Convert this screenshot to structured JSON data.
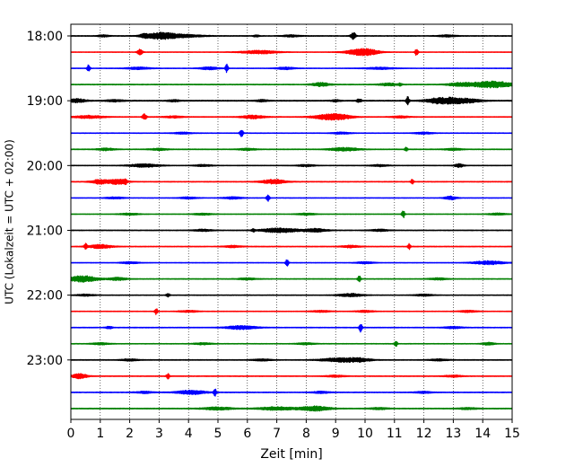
{
  "chart_data": {
    "type": "line",
    "title": "",
    "xlabel": "Zeit  [min]",
    "ylabel": "UTC (Lokalzeit = UTC + 02:00)",
    "xlim": [
      0,
      15
    ],
    "x_ticks": [
      "0",
      "1",
      "2",
      "3",
      "4",
      "5",
      "6",
      "7",
      "8",
      "9",
      "10",
      "11",
      "12",
      "13",
      "14",
      "15"
    ],
    "y_tick_labels": [
      "18:00",
      "19:00",
      "20:00",
      "21:00",
      "22:00",
      "23:00"
    ],
    "grid_x": "dotted",
    "colors": [
      "#000000",
      "#ff0000",
      "#0000ff",
      "#008000"
    ],
    "traces": [
      {
        "start": "18:00",
        "color": "#000000",
        "noise": 0.6,
        "events": [
          [
            1.1,
            0.2,
            1.0
          ],
          [
            2.5,
            0.15,
            1.5
          ],
          [
            3.0,
            0.5,
            2.5
          ],
          [
            3.6,
            0.8,
            1.8
          ],
          [
            6.3,
            0.1,
            1.0
          ],
          [
            7.5,
            0.3,
            1.0
          ],
          [
            9.6,
            0.08,
            4.5
          ],
          [
            12.8,
            0.3,
            1.0
          ]
        ]
      },
      {
        "start": "18:15",
        "color": "#ff0000",
        "noise": 0.5,
        "events": [
          [
            2.35,
            0.08,
            4.0
          ],
          [
            6.4,
            0.6,
            1.8
          ],
          [
            9.8,
            0.5,
            2.5
          ],
          [
            10.1,
            0.4,
            2.0
          ],
          [
            11.75,
            0.05,
            4.0
          ]
        ]
      },
      {
        "start": "18:30",
        "color": "#0000ff",
        "noise": 0.5,
        "events": [
          [
            0.6,
            0.05,
            4.0
          ],
          [
            2.3,
            0.4,
            1.2
          ],
          [
            4.7,
            0.3,
            1.5
          ],
          [
            5.3,
            0.05,
            4.5
          ],
          [
            7.3,
            0.3,
            1.2
          ],
          [
            10.5,
            0.5,
            1.0
          ]
        ]
      },
      {
        "start": "18:45",
        "color": "#008000",
        "noise": 0.6,
        "events": [
          [
            8.5,
            0.3,
            2.0
          ],
          [
            10.8,
            0.3,
            1.5
          ],
          [
            11.2,
            0.06,
            1.5
          ],
          [
            13.2,
            0.4,
            1.5
          ],
          [
            14.3,
            0.8,
            3.5
          ]
        ]
      },
      {
        "start": "19:00",
        "color": "#000000",
        "noise": 0.8,
        "events": [
          [
            0.2,
            0.3,
            2.0
          ],
          [
            1.5,
            0.3,
            1.0
          ],
          [
            3.5,
            0.2,
            1.0
          ],
          [
            6.5,
            0.2,
            1.0
          ],
          [
            9.0,
            0.15,
            1.0
          ],
          [
            9.8,
            0.08,
            2.0
          ],
          [
            11.45,
            0.05,
            5.0
          ],
          [
            12.4,
            0.4,
            2.0
          ],
          [
            12.95,
            0.5,
            3.0
          ],
          [
            13.6,
            0.4,
            1.5
          ]
        ]
      },
      {
        "start": "19:15",
        "color": "#ff0000",
        "noise": 0.6,
        "events": [
          [
            0.6,
            0.5,
            1.5
          ],
          [
            2.5,
            0.07,
            3.5
          ],
          [
            3.5,
            0.3,
            1.0
          ],
          [
            6.2,
            0.4,
            1.8
          ],
          [
            8.7,
            0.5,
            2.5
          ],
          [
            9.2,
            0.4,
            2.0
          ],
          [
            11.2,
            0.3,
            1.0
          ]
        ]
      },
      {
        "start": "19:30",
        "color": "#0000ff",
        "noise": 0.5,
        "events": [
          [
            3.8,
            0.3,
            1.0
          ],
          [
            5.8,
            0.06,
            4.0
          ],
          [
            9.2,
            0.3,
            1.0
          ],
          [
            12.0,
            0.3,
            1.0
          ]
        ]
      },
      {
        "start": "19:45",
        "color": "#008000",
        "noise": 0.6,
        "events": [
          [
            1.2,
            0.3,
            1.2
          ],
          [
            3.0,
            0.3,
            1.0
          ],
          [
            6.0,
            0.3,
            1.0
          ],
          [
            9.3,
            0.5,
            1.8
          ],
          [
            11.4,
            0.05,
            2.5
          ],
          [
            13.0,
            0.3,
            1.0
          ]
        ]
      },
      {
        "start": "20:00",
        "color": "#000000",
        "noise": 0.5,
        "events": [
          [
            2.5,
            0.5,
            1.8
          ],
          [
            4.5,
            0.3,
            1.0
          ],
          [
            8.0,
            0.3,
            1.0
          ],
          [
            10.5,
            0.3,
            1.0
          ],
          [
            13.2,
            0.15,
            2.0
          ]
        ]
      },
      {
        "start": "20:15",
        "color": "#ff0000",
        "noise": 0.6,
        "events": [
          [
            1.0,
            0.3,
            2.5
          ],
          [
            1.6,
            0.3,
            3.0
          ],
          [
            1.85,
            0.04,
            3.0
          ],
          [
            6.9,
            0.4,
            2.5
          ],
          [
            11.6,
            0.05,
            2.5
          ]
        ]
      },
      {
        "start": "20:30",
        "color": "#0000ff",
        "noise": 0.5,
        "events": [
          [
            1.5,
            0.3,
            1.0
          ],
          [
            4.0,
            0.3,
            1.0
          ],
          [
            5.5,
            0.3,
            1.2
          ],
          [
            6.7,
            0.05,
            4.0
          ],
          [
            12.9,
            0.2,
            2.0
          ]
        ]
      },
      {
        "start": "20:45",
        "color": "#008000",
        "noise": 0.5,
        "events": [
          [
            2.0,
            0.3,
            1.0
          ],
          [
            4.5,
            0.3,
            1.0
          ],
          [
            8.0,
            0.3,
            1.0
          ],
          [
            11.3,
            0.05,
            4.5
          ],
          [
            14.5,
            0.3,
            1.0
          ]
        ]
      },
      {
        "start": "21:00",
        "color": "#000000",
        "noise": 0.6,
        "events": [
          [
            4.5,
            0.3,
            1.0
          ],
          [
            6.2,
            0.05,
            2.0
          ],
          [
            7.1,
            0.6,
            2.5
          ],
          [
            8.3,
            0.4,
            1.8
          ],
          [
            10.5,
            0.3,
            1.0
          ]
        ]
      },
      {
        "start": "21:15",
        "color": "#ff0000",
        "noise": 0.6,
        "events": [
          [
            0.5,
            0.05,
            3.0
          ],
          [
            1.0,
            0.4,
            2.0
          ],
          [
            5.5,
            0.3,
            1.0
          ],
          [
            9.5,
            0.3,
            1.2
          ],
          [
            11.5,
            0.05,
            3.0
          ]
        ]
      },
      {
        "start": "21:30",
        "color": "#0000ff",
        "noise": 0.5,
        "events": [
          [
            2.0,
            0.3,
            1.0
          ],
          [
            7.35,
            0.05,
            4.5
          ],
          [
            10.0,
            0.3,
            1.0
          ],
          [
            14.2,
            0.5,
            2.0
          ]
        ]
      },
      {
        "start": "21:45",
        "color": "#008000",
        "noise": 0.6,
        "events": [
          [
            0.4,
            0.5,
            3.5
          ],
          [
            1.6,
            0.3,
            1.5
          ],
          [
            6.0,
            0.3,
            1.0
          ],
          [
            9.8,
            0.05,
            4.0
          ],
          [
            12.5,
            0.3,
            1.0
          ]
        ]
      },
      {
        "start": "22:00",
        "color": "#000000",
        "noise": 0.5,
        "events": [
          [
            0.5,
            0.3,
            1.0
          ],
          [
            3.3,
            0.06,
            2.0
          ],
          [
            9.5,
            0.4,
            1.8
          ],
          [
            12.0,
            0.3,
            1.0
          ]
        ]
      },
      {
        "start": "22:15",
        "color": "#ff0000",
        "noise": 0.5,
        "events": [
          [
            2.9,
            0.05,
            3.5
          ],
          [
            4.0,
            0.3,
            1.0
          ],
          [
            8.5,
            0.3,
            1.0
          ],
          [
            10.0,
            0.3,
            1.0
          ],
          [
            13.5,
            0.3,
            1.0
          ]
        ]
      },
      {
        "start": "22:30",
        "color": "#0000ff",
        "noise": 0.6,
        "events": [
          [
            1.3,
            0.1,
            1.5
          ],
          [
            5.8,
            0.5,
            2.0
          ],
          [
            9.85,
            0.05,
            5.0
          ],
          [
            13.0,
            0.3,
            1.0
          ]
        ]
      },
      {
        "start": "22:45",
        "color": "#008000",
        "noise": 0.5,
        "events": [
          [
            1.0,
            0.3,
            1.0
          ],
          [
            4.5,
            0.3,
            1.0
          ],
          [
            8.0,
            0.3,
            1.0
          ],
          [
            11.05,
            0.05,
            3.0
          ],
          [
            14.2,
            0.2,
            1.5
          ]
        ]
      },
      {
        "start": "23:00",
        "color": "#000000",
        "noise": 0.6,
        "events": [
          [
            2.0,
            0.3,
            1.0
          ],
          [
            6.5,
            0.3,
            1.0
          ],
          [
            9.1,
            0.6,
            2.0
          ],
          [
            9.8,
            0.4,
            1.8
          ],
          [
            12.5,
            0.3,
            1.0
          ]
        ]
      },
      {
        "start": "23:15",
        "color": "#ff0000",
        "noise": 0.6,
        "events": [
          [
            0.3,
            0.25,
            2.8
          ],
          [
            3.3,
            0.05,
            3.0
          ],
          [
            9.0,
            0.3,
            1.0
          ],
          [
            13.0,
            0.3,
            1.0
          ]
        ]
      },
      {
        "start": "23:30",
        "color": "#0000ff",
        "noise": 0.6,
        "events": [
          [
            2.5,
            0.3,
            1.0
          ],
          [
            4.1,
            0.5,
            2.2
          ],
          [
            4.9,
            0.05,
            4.0
          ],
          [
            8.5,
            0.3,
            1.0
          ],
          [
            12.0,
            0.3,
            1.0
          ]
        ]
      },
      {
        "start": "23:45",
        "color": "#008000",
        "noise": 0.7,
        "events": [
          [
            5.0,
            0.5,
            1.5
          ],
          [
            7.0,
            0.6,
            1.8
          ],
          [
            8.3,
            0.5,
            2.5
          ],
          [
            10.5,
            0.3,
            1.0
          ],
          [
            13.5,
            0.3,
            1.0
          ]
        ]
      }
    ]
  }
}
